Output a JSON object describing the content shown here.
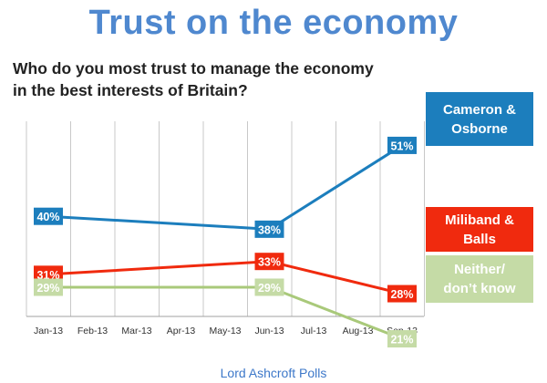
{
  "chart_data": {
    "type": "line",
    "title": "Trust on the economy",
    "subtitle": "Who do you most trust to manage the economy in the best interests of Britain?",
    "categories": [
      "Jan-13",
      "Feb-13",
      "Mar-13",
      "Apr-13",
      "May-13",
      "Jun-13",
      "Jul-13",
      "Aug-13",
      "Sep-13"
    ],
    "ylim": [
      0,
      60
    ],
    "grid": "vertical",
    "legend_position": "right",
    "series": [
      {
        "name": "Cameron & Osborne",
        "color": "#1c7ebd",
        "points": [
          {
            "x": "Jan-13",
            "y": 40
          },
          {
            "x": "Jun-13",
            "y": 38
          },
          {
            "x": "Sep-13",
            "y": 51
          }
        ],
        "labels": [
          "40%",
          "38%",
          "51%"
        ]
      },
      {
        "name": "Miliband & Balls",
        "color": "#f02a0e",
        "points": [
          {
            "x": "Jan-13",
            "y": 31
          },
          {
            "x": "Jun-13",
            "y": 33
          },
          {
            "x": "Sep-13",
            "y": 28
          }
        ],
        "labels": [
          "31%",
          "33%",
          "28%"
        ]
      },
      {
        "name": "Neither/ don’t know",
        "color": "#a9c97a",
        "points": [
          {
            "x": "Jan-13",
            "y": 29
          },
          {
            "x": "Jun-13",
            "y": 29
          },
          {
            "x": "Sep-13",
            "y": 21
          }
        ],
        "labels": [
          "29%",
          "29%",
          "21%"
        ]
      }
    ],
    "legend": [
      {
        "line1": "Cameron &",
        "line2": "Osborne"
      },
      {
        "line1": "Miliband &",
        "line2": "Balls"
      },
      {
        "line1": "Neither/",
        "line2": "don’t know"
      }
    ],
    "source": "Lord Ashcroft Polls"
  },
  "label_colors": {
    "fill": [
      "#1c7ebd",
      "#f02a0e",
      "#c5dba6"
    ],
    "text": [
      "#ffffff",
      "#ffffff",
      "#ffffff"
    ]
  },
  "colors": {
    "title": "#4f88cf",
    "grid": "#c8c8c8",
    "source": "#3d78c9"
  }
}
